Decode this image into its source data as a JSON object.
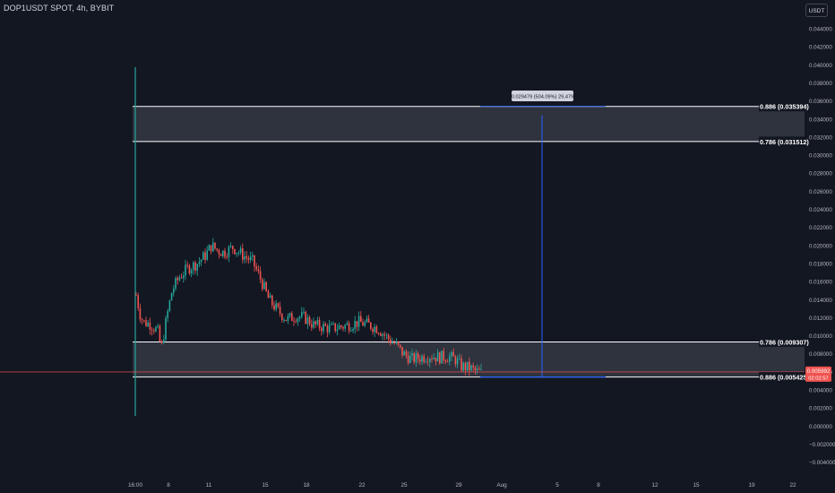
{
  "header": {
    "symbol_title": "DOP1USDT SPOT, 4h, BYBIT",
    "currency_button": "USDT"
  },
  "colors": {
    "background": "#131722",
    "up": "#26a69a",
    "down": "#ef5350",
    "zone_fill": "#5d606b",
    "zone_line": "#ffffff",
    "measure_line": "#2962ff",
    "current_price_line": "#ef5350"
  },
  "price_axis": {
    "labels": [
      "0.044000",
      "0.042000",
      "0.040000",
      "0.038000",
      "0.036000",
      "0.034000",
      "0.032000",
      "0.030000",
      "0.028000",
      "0.026000",
      "0.024000",
      "0.022000",
      "0.020000",
      "0.018000",
      "0.016000",
      "0.014000",
      "0.012000",
      "0.010000",
      "0.008000",
      "0.006000",
      "0.004000",
      "0.002000",
      "0.000000",
      "−0.002000",
      "−0.004000"
    ],
    "range": [
      -0.0048,
      0.0466
    ]
  },
  "time_axis": {
    "labels": [
      "16:00",
      "8",
      "11",
      "15",
      "18",
      "22",
      "25",
      "29",
      "Aug",
      "5",
      "8",
      "12",
      "15",
      "19",
      "22"
    ]
  },
  "zones": [
    {
      "name": "upper",
      "top_label": "0.886 (0.035394)",
      "bottom_label": "0.786 (0.031512)",
      "top": 0.035394,
      "bottom": 0.031512
    },
    {
      "name": "lower",
      "top_label": "0.786 (0.009307)",
      "bottom_label": "0.886 (0.005425)",
      "top": 0.009307,
      "bottom": 0.005425
    }
  ],
  "measure_tooltip": "0.029479 (504.09%) 29,479",
  "current_price": {
    "value": 0.005992,
    "price_label": "0.005992",
    "countdown": "02:02:57"
  }
}
